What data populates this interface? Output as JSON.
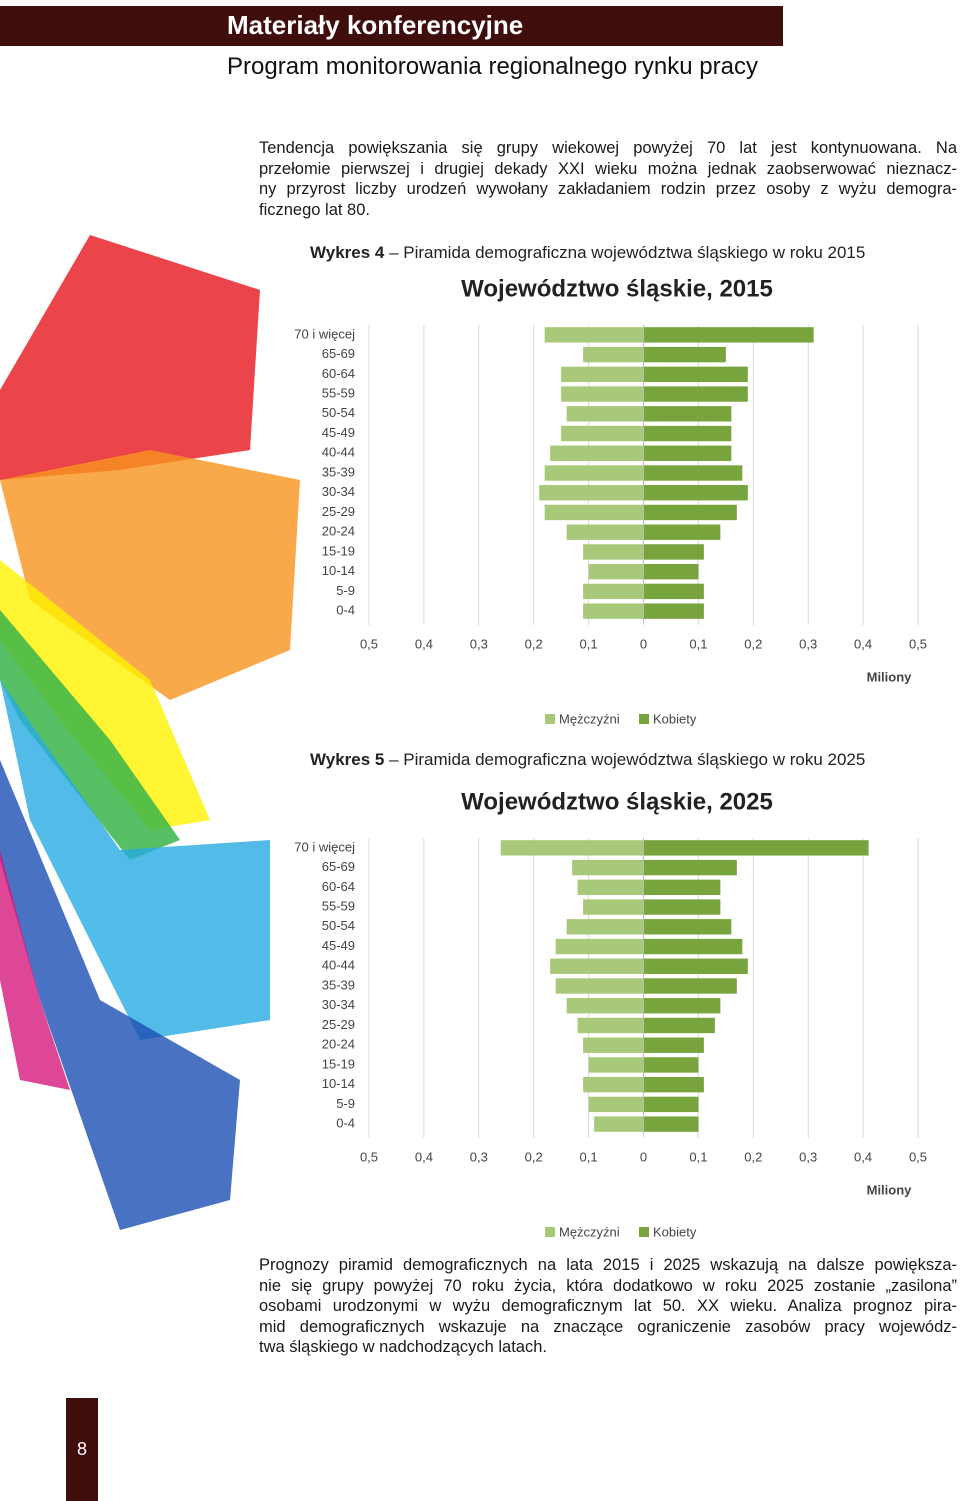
{
  "header": {
    "title": "Materiały konferencyjne",
    "subtitle": "Program monitorowania regionalnego rynku pracy"
  },
  "paragraphs": [
    [
      "Tendencja powiększania się grupy wiekowej powyżej 70 lat jest kontynuowana. Na",
      "przełomie pierwszej i drugiej dekady XXI wieku można jednak zaobserwować nieznacz-",
      "ny przyrost liczby urodzeń wywołany zakładaniem rodzin przez osoby z wyżu demogra-",
      "ficznego lat 80."
    ],
    [
      "Prognozy piramid demograficznych na lata 2015 i 2025 wskazują na dalsze powiększa-",
      "nie się grupy powyżej 70 roku życia, która dodatkowo w roku 2025 zostanie „zasilona”",
      "osobami urodzonymi w wyżu demograficznym lat 50. XX wieku. Analiza prognoz pira-",
      "mid demograficznych wskazuje na znaczące ograniczenie zasobów pracy wojewódz-",
      "twa śląskiego w nadchodzących latach."
    ]
  ],
  "captions": [
    {
      "label": "Wykres 4",
      "text": "– Piramida demograficzna województwa śląskiego w roku 2015"
    },
    {
      "label": "Wykres 5",
      "text": "– Piramida demograficzna województwa śląskiego w roku 2025"
    }
  ],
  "page_number": "8",
  "chart_data": [
    {
      "type": "pyramid",
      "title": "Województwo śląskie, 2015",
      "x_label": "Miliony",
      "categories": [
        "0-4",
        "5-9",
        "10-14",
        "15-19",
        "20-24",
        "25-29",
        "30-34",
        "35-39",
        "40-44",
        "45-49",
        "50-54",
        "55-59",
        "60-64",
        "65-69",
        "70 i więcej"
      ],
      "series": [
        {
          "name": "Mężczyźni",
          "color": "#a9c97a",
          "values": [
            0.11,
            0.11,
            0.1,
            0.11,
            0.14,
            0.18,
            0.19,
            0.18,
            0.17,
            0.15,
            0.14,
            0.15,
            0.15,
            0.11,
            0.18
          ]
        },
        {
          "name": "Kobiety",
          "color": "#77a43d",
          "values": [
            0.11,
            0.11,
            0.1,
            0.11,
            0.14,
            0.17,
            0.19,
            0.18,
            0.16,
            0.16,
            0.16,
            0.19,
            0.19,
            0.15,
            0.31
          ]
        }
      ],
      "xlim": [
        -0.5,
        0.5
      ],
      "xticks": [
        {
          "value": -0.5,
          "label": "0,5"
        },
        {
          "value": -0.4,
          "label": "0,4"
        },
        {
          "value": -0.3,
          "label": "0,3"
        },
        {
          "value": -0.2,
          "label": "0,2"
        },
        {
          "value": -0.1,
          "label": "0,1"
        },
        0,
        {
          "value": 0.1,
          "label": "0,1"
        },
        {
          "value": 0.2,
          "label": "0,2"
        },
        {
          "value": 0.3,
          "label": "0,3"
        },
        {
          "value": 0.4,
          "label": "0,4"
        },
        {
          "value": 0.5,
          "label": "0,5"
        }
      ],
      "grid": true
    },
    {
      "type": "pyramid",
      "title": "Województwo śląskie, 2025",
      "x_label": "Miliony",
      "categories": [
        "0-4",
        "5-9",
        "10-14",
        "15-19",
        "20-24",
        "25-29",
        "30-34",
        "35-39",
        "40-44",
        "45-49",
        "50-54",
        "55-59",
        "60-64",
        "65-69",
        "70 i więcej"
      ],
      "series": [
        {
          "name": "Mężczyźni",
          "color": "#a9c97a",
          "values": [
            0.09,
            0.1,
            0.11,
            0.1,
            0.11,
            0.12,
            0.14,
            0.16,
            0.17,
            0.16,
            0.14,
            0.11,
            0.12,
            0.13,
            0.26
          ]
        },
        {
          "name": "Kobiety",
          "color": "#77a43d",
          "values": [
            0.1,
            0.1,
            0.11,
            0.1,
            0.11,
            0.13,
            0.14,
            0.17,
            0.19,
            0.18,
            0.16,
            0.14,
            0.14,
            0.17,
            0.41
          ]
        }
      ],
      "xlim": [
        -0.5,
        0.5
      ],
      "xticks": [
        {
          "value": -0.5,
          "label": "0,5"
        },
        {
          "value": -0.4,
          "label": "0,4"
        },
        {
          "value": -0.3,
          "label": "0,3"
        },
        {
          "value": -0.2,
          "label": "0,2"
        },
        {
          "value": -0.1,
          "label": "0,1"
        },
        0,
        {
          "value": 0.1,
          "label": "0,1"
        },
        {
          "value": 0.2,
          "label": "0,2"
        },
        {
          "value": 0.3,
          "label": "0,3"
        },
        {
          "value": 0.4,
          "label": "0,4"
        },
        {
          "value": 0.5,
          "label": "0,5"
        }
      ],
      "grid": true
    }
  ]
}
